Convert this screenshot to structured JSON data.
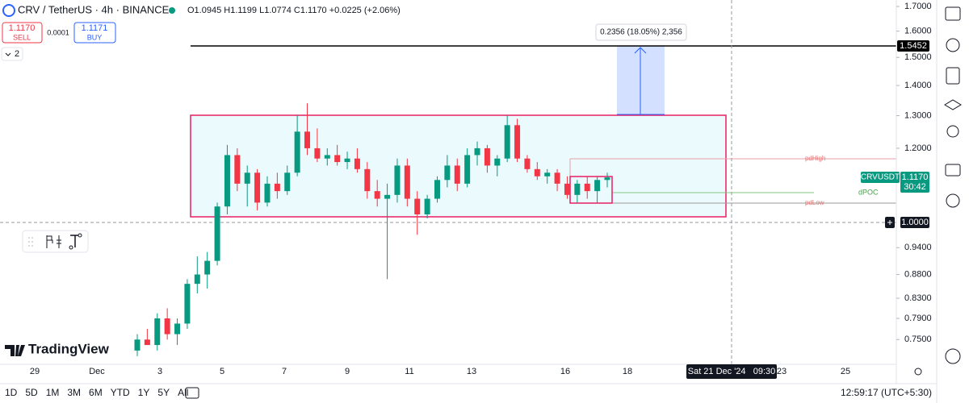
{
  "header": {
    "symbol": "CRV / TetherUS · 4h · BINANCE",
    "ohlc": "O1.0945 H1.1199 L1.0774 C1.1170 +0.0225 (+2.06%)"
  },
  "trade": {
    "sell_price": "1.1170",
    "sell": "SELL",
    "spread": "0.0001",
    "buy_price": "1.1171",
    "buy": "BUY"
  },
  "indicators_count": "2",
  "price_axis": {
    "log": true,
    "ticks": [
      {
        "value": 1.7,
        "label": "1.7000"
      },
      {
        "value": 1.6,
        "label": "1.6000"
      },
      {
        "value": 1.5,
        "label": "1.5000"
      },
      {
        "value": 1.4,
        "label": "1.4000"
      },
      {
        "value": 1.3,
        "label": "1.3000"
      },
      {
        "value": 1.2,
        "label": "1.2000"
      },
      {
        "value": 0.94,
        "label": "0.9400"
      },
      {
        "value": 0.88,
        "label": "0.8800"
      },
      {
        "value": 0.83,
        "label": "0.8300"
      },
      {
        "value": 0.79,
        "label": "0.7900"
      },
      {
        "value": 0.75,
        "label": "0.7500"
      }
    ]
  },
  "time_axis": [
    "29",
    "Dec",
    "3",
    "5",
    "7",
    "9",
    "11",
    "13",
    "16",
    "18",
    "23",
    "25"
  ],
  "candles": [
    [
      0.73,
      0.76,
      0.72,
      0.75
    ],
    [
      0.75,
      0.77,
      0.74,
      0.74
    ],
    [
      0.74,
      0.8,
      0.73,
      0.79
    ],
    [
      0.79,
      0.81,
      0.75,
      0.76
    ],
    [
      0.76,
      0.79,
      0.74,
      0.78
    ],
    [
      0.78,
      0.87,
      0.77,
      0.86
    ],
    [
      0.86,
      0.92,
      0.84,
      0.88
    ],
    [
      0.88,
      0.93,
      0.85,
      0.91
    ],
    [
      0.91,
      1.05,
      0.9,
      1.04
    ],
    [
      1.04,
      1.21,
      1.02,
      1.18
    ],
    [
      1.18,
      1.2,
      1.08,
      1.1
    ],
    [
      1.1,
      1.15,
      1.04,
      1.13
    ],
    [
      1.13,
      1.14,
      1.03,
      1.05
    ],
    [
      1.05,
      1.12,
      1.04,
      1.1
    ],
    [
      1.1,
      1.13,
      1.06,
      1.08
    ],
    [
      1.08,
      1.15,
      1.07,
      1.13
    ],
    [
      1.13,
      1.3,
      1.12,
      1.25
    ],
    [
      1.25,
      1.34,
      1.18,
      1.2
    ],
    [
      1.2,
      1.26,
      1.16,
      1.17
    ],
    [
      1.17,
      1.2,
      1.15,
      1.18
    ],
    [
      1.18,
      1.21,
      1.15,
      1.16
    ],
    [
      1.16,
      1.19,
      1.14,
      1.17
    ],
    [
      1.17,
      1.2,
      1.13,
      1.14
    ],
    [
      1.14,
      1.16,
      1.06,
      1.08
    ],
    [
      1.08,
      1.11,
      1.04,
      1.06
    ],
    [
      1.06,
      1.1,
      0.87,
      1.07
    ],
    [
      1.07,
      1.17,
      1.05,
      1.15
    ],
    [
      1.15,
      1.17,
      1.04,
      1.06
    ],
    [
      1.06,
      1.08,
      0.97,
      1.02
    ],
    [
      1.02,
      1.07,
      1.01,
      1.06
    ],
    [
      1.06,
      1.12,
      1.05,
      1.11
    ],
    [
      1.11,
      1.18,
      1.09,
      1.15
    ],
    [
      1.15,
      1.17,
      1.08,
      1.1
    ],
    [
      1.1,
      1.2,
      1.09,
      1.18
    ],
    [
      1.18,
      1.22,
      1.15,
      1.2
    ],
    [
      1.2,
      1.21,
      1.13,
      1.15
    ],
    [
      1.15,
      1.18,
      1.12,
      1.17
    ],
    [
      1.17,
      1.3,
      1.16,
      1.27
    ],
    [
      1.27,
      1.29,
      1.16,
      1.17
    ],
    [
      1.17,
      1.18,
      1.13,
      1.14
    ],
    [
      1.14,
      1.16,
      1.11,
      1.12
    ],
    [
      1.12,
      1.14,
      1.1,
      1.13
    ],
    [
      1.13,
      1.14,
      1.08,
      1.1
    ],
    [
      1.1,
      1.12,
      1.06,
      1.07
    ],
    [
      1.07,
      1.11,
      1.05,
      1.1
    ],
    [
      1.1,
      1.12,
      1.06,
      1.08
    ],
    [
      1.08,
      1.12,
      1.05,
      1.11
    ],
    [
      1.11,
      1.13,
      1.09,
      1.117
    ]
  ],
  "drawings": {
    "measure": "0.2356 (18.05%) 2,356",
    "pd_high": "pdHigh",
    "d_poc": "dPOC",
    "pd_low": "pdLow"
  },
  "price_tags": {
    "line": "1.5452",
    "symbol": "CRVUSDT",
    "last": "1.1170",
    "countdown": "30:42",
    "crosshair": "1.0000"
  },
  "crosshair_time": "Sat 21 Dec '24   09:30",
  "brand": "TradingView",
  "ranges": [
    "1D",
    "5D",
    "1M",
    "3M",
    "6M",
    "YTD",
    "1Y",
    "5Y",
    "All"
  ],
  "clock": "12:59:17 (UTC+5:30)"
}
